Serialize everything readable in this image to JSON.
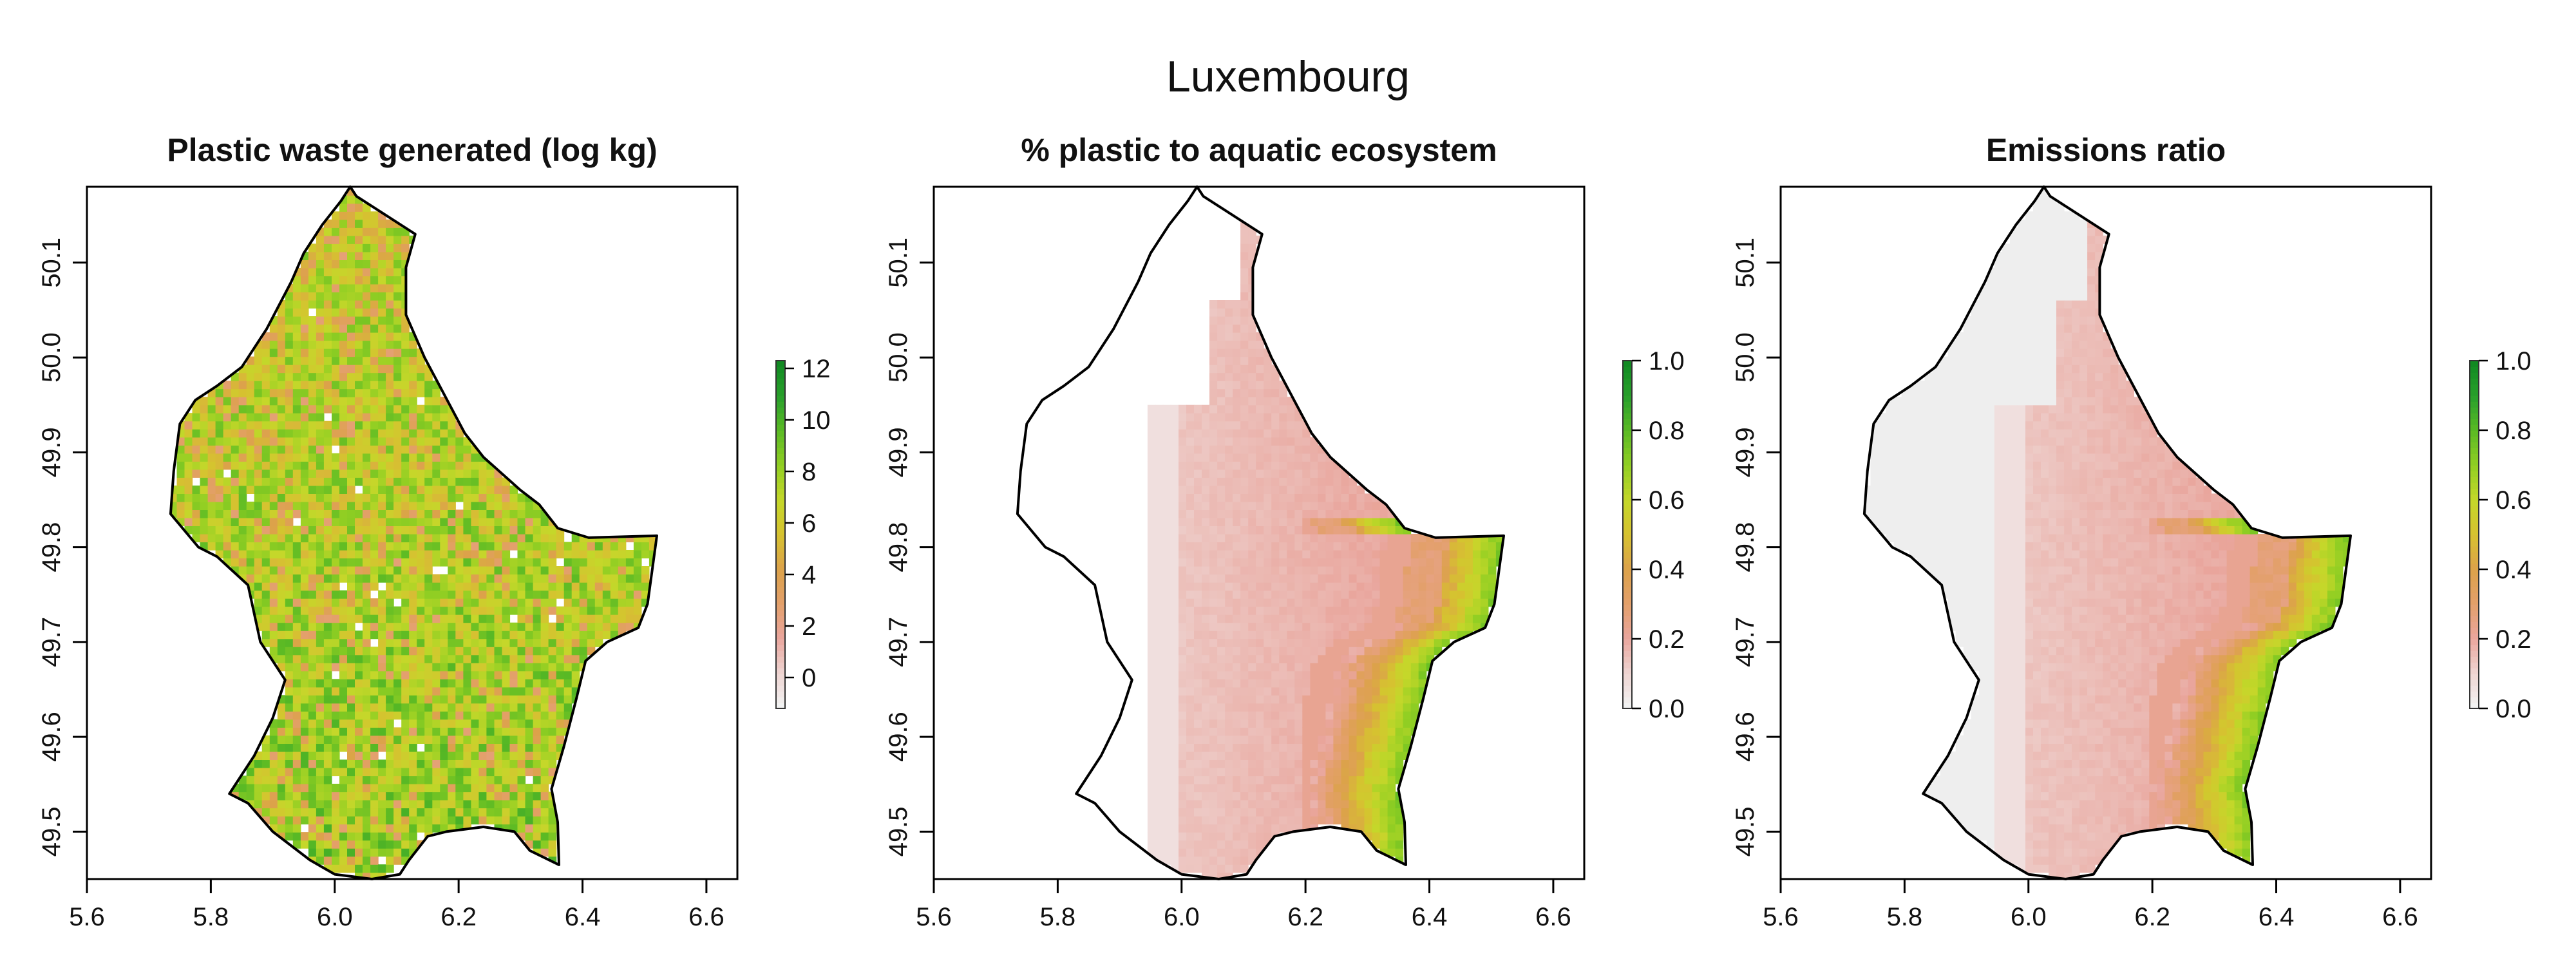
{
  "figure": {
    "title": "Luxembourg"
  },
  "colors": {
    "ramp": [
      "#f2f2f2",
      "#eed3d0",
      "#e9a59c",
      "#e3a06a",
      "#dca24a",
      "#d6c230",
      "#c5d72a",
      "#93cf23",
      "#5dbb24",
      "#2aa12b",
      "#118a22"
    ],
    "no_emission_grey": "#eeeeee",
    "outline": "#000000"
  },
  "chart_data": [
    {
      "type": "heatmap",
      "title": "Plastic waste generated (log kg)",
      "xlabel": "",
      "ylabel": "",
      "xlim": [
        5.6,
        6.65
      ],
      "ylim": [
        49.45,
        50.18
      ],
      "xticks": [
        "5.6",
        "5.8",
        "6.0",
        "6.2",
        "6.4",
        "6.6"
      ],
      "yticks": [
        "49.5",
        "49.6",
        "49.7",
        "49.8",
        "49.9",
        "50.0",
        "50.1"
      ],
      "legend": {
        "min": -1.2,
        "max": 12.3,
        "ticks": [
          "0",
          "2",
          "4",
          "6",
          "8",
          "10",
          "12"
        ],
        "placement": "right"
      },
      "description_fields": {
        "typical_value": 7,
        "range": [
          -1,
          12
        ]
      },
      "pattern": "mixed"
    },
    {
      "type": "heatmap",
      "title": "% plastic to aquatic ecosystem",
      "xlabel": "",
      "ylabel": "",
      "xlim": [
        5.6,
        6.65
      ],
      "ylim": [
        49.45,
        50.18
      ],
      "xticks": [
        "5.6",
        "5.8",
        "6.0",
        "6.2",
        "6.4",
        "6.6"
      ],
      "yticks": [
        "49.5",
        "49.6",
        "49.7",
        "49.8",
        "49.9",
        "50.0",
        "50.1"
      ],
      "legend": {
        "min": 0.0,
        "max": 1.0,
        "ticks": [
          "0.0",
          "0.2",
          "0.4",
          "0.6",
          "0.8",
          "1.0"
        ],
        "placement": "right"
      },
      "pattern": "gradient_east"
    },
    {
      "type": "heatmap",
      "title": "Emissions ratio",
      "xlabel": "",
      "ylabel": "",
      "xlim": [
        5.6,
        6.65
      ],
      "ylim": [
        49.45,
        50.18
      ],
      "xticks": [
        "5.6",
        "5.8",
        "6.0",
        "6.2",
        "6.4",
        "6.6"
      ],
      "yticks": [
        "49.5",
        "49.6",
        "49.7",
        "49.8",
        "49.9",
        "50.0",
        "50.1"
      ],
      "legend": {
        "min": 0.0,
        "max": 1.0,
        "ticks": [
          "0.0",
          "0.2",
          "0.4",
          "0.6",
          "0.8",
          "1.0"
        ],
        "placement": "right"
      },
      "pattern": "gradient_east_grey"
    }
  ]
}
